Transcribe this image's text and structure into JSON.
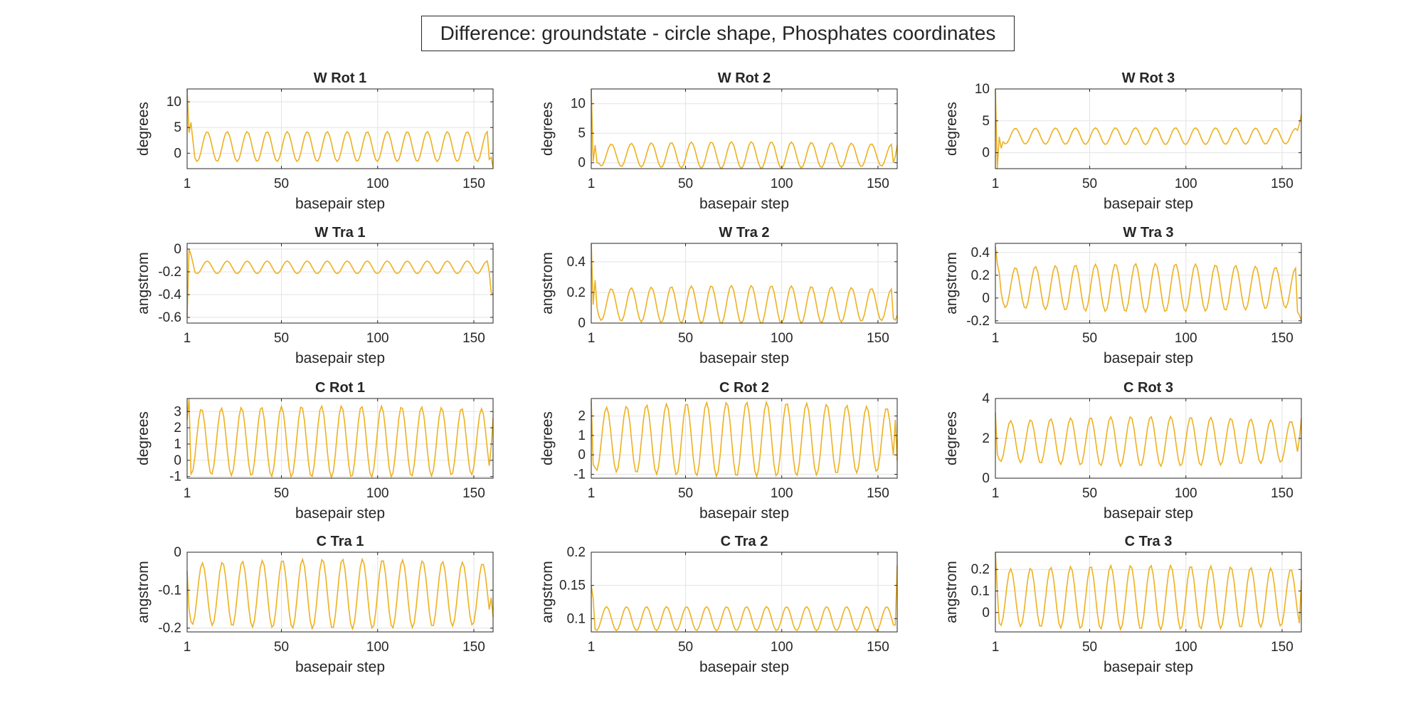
{
  "figure": {
    "suptitle": "Difference: groundstate - circle shape, Phosphates coordinates",
    "line_color": "#EDB120"
  },
  "chart_data": [
    {
      "type": "line",
      "title": "W Rot 1",
      "xlabel": "basepair step",
      "ylabel": "degrees",
      "xlim": [
        1,
        160
      ],
      "ylim": [
        -3,
        12.5
      ],
      "xticks": [
        1,
        50,
        100,
        150
      ],
      "yticks": [
        0,
        5,
        10
      ],
      "grid": true,
      "series": [
        {
          "x_start": 1,
          "x_end": 160,
          "period": 10.4,
          "mean": 1.3,
          "amplitude": 2.9,
          "amp_growth": 0,
          "phase": 0,
          "start": [
            12.5,
            4,
            6,
            2.5
          ],
          "end": [
            -1.2,
            -0.8,
            -2.8
          ]
        }
      ]
    },
    {
      "type": "line",
      "title": "W Rot 2",
      "xlabel": "basepair step",
      "ylabel": "degrees",
      "xlim": [
        1,
        160
      ],
      "ylim": [
        -1,
        12.5
      ],
      "xticks": [
        1,
        50,
        100,
        150
      ],
      "yticks": [
        0,
        5,
        10
      ],
      "grid": true,
      "series": [
        {
          "x_start": 1,
          "x_end": 160,
          "period": 10.4,
          "mean": 1.3,
          "amplitude": 1.8,
          "amp_growth": 0.25,
          "phase": 0,
          "start": [
            12.5,
            0.2,
            3,
            0
          ],
          "end": [
            0,
            1,
            3
          ]
        }
      ]
    },
    {
      "type": "line",
      "title": "W Rot 3",
      "xlabel": "basepair step",
      "ylabel": "degrees",
      "xlim": [
        1,
        160
      ],
      "ylim": [
        -2.5,
        10
      ],
      "xticks": [
        1,
        50,
        100,
        150
      ],
      "yticks": [
        0,
        5,
        10
      ],
      "grid": true,
      "series": [
        {
          "x_start": 1,
          "x_end": 160,
          "period": 10.4,
          "mean": 2.6,
          "amplitude": 1.2,
          "amp_growth": 0.1,
          "phase": 0,
          "start": [
            10,
            -2.5,
            2.5,
            0.7
          ],
          "end": [
            3.5,
            4.5,
            6
          ]
        }
      ]
    },
    {
      "type": "line",
      "title": "W Tra 1",
      "xlabel": "basepair step",
      "ylabel": "angstrom",
      "xlim": [
        1,
        160
      ],
      "ylim": [
        -0.65,
        0.05
      ],
      "xticks": [
        1,
        50,
        100,
        150
      ],
      "yticks": [
        -0.6,
        -0.4,
        -0.2,
        0
      ],
      "grid": true,
      "series": [
        {
          "x_start": 1,
          "x_end": 160,
          "period": 10.4,
          "mean": -0.16,
          "amplitude": 0.055,
          "amp_growth": 0,
          "phase": 0,
          "start": [
            -0.6,
            0,
            -0.05,
            -0.12
          ],
          "end": [
            -0.2,
            -0.38,
            -0.4
          ]
        }
      ]
    },
    {
      "type": "line",
      "title": "W Tra 2",
      "xlabel": "basepair step",
      "ylabel": "angstrom",
      "xlim": [
        1,
        160
      ],
      "ylim": [
        0,
        0.52
      ],
      "xticks": [
        1,
        50,
        100,
        150
      ],
      "yticks": [
        0,
        0.2,
        0.4
      ],
      "grid": true,
      "series": [
        {
          "x_start": 1,
          "x_end": 160,
          "period": 10.4,
          "mean": 0.12,
          "amplitude": 0.1,
          "amp_growth": 0.25,
          "phase": 0,
          "start": [
            0.52,
            0.12,
            0.28,
            0.1
          ],
          "end": [
            0.03,
            0.02,
            0.05
          ]
        }
      ]
    },
    {
      "type": "line",
      "title": "W Tra 3",
      "xlabel": "basepair step",
      "ylabel": "angstrom",
      "xlim": [
        1,
        160
      ],
      "ylim": [
        -0.22,
        0.48
      ],
      "xticks": [
        1,
        50,
        100,
        150
      ],
      "yticks": [
        -0.2,
        0,
        0.2,
        0.4
      ],
      "grid": true,
      "series": [
        {
          "x_start": 1,
          "x_end": 160,
          "period": 10.4,
          "mean": 0.09,
          "amplitude": 0.17,
          "amp_growth": 0.25,
          "phase": 0,
          "start": [
            0.45,
            0.3,
            0.22,
            0.05
          ],
          "end": [
            -0.12,
            -0.15,
            -0.2
          ]
        }
      ]
    },
    {
      "type": "line",
      "title": "C Rot 1",
      "xlabel": "basepair step",
      "ylabel": "degrees",
      "xlim": [
        1,
        160
      ],
      "ylim": [
        -1.1,
        3.8
      ],
      "xticks": [
        1,
        50,
        100,
        150
      ],
      "yticks": [
        -1,
        0,
        1,
        2,
        3
      ],
      "grid": true,
      "series": [
        {
          "x_start": 1,
          "x_end": 160,
          "period": 10.4,
          "mean": 1.15,
          "amplitude": 2.0,
          "amp_growth": 0.1,
          "phase": 1.8,
          "start": [
            2.5,
            3.8
          ],
          "end": [
            0.8,
            2.6
          ]
        }
      ]
    },
    {
      "type": "line",
      "title": "C Rot 2",
      "xlabel": "basepair step",
      "ylabel": "degrees",
      "xlim": [
        1,
        160
      ],
      "ylim": [
        -1.2,
        2.9
      ],
      "xticks": [
        1,
        50,
        100,
        150
      ],
      "yticks": [
        -1,
        0,
        1,
        2
      ],
      "grid": true,
      "series": [
        {
          "x_start": 1,
          "x_end": 160,
          "period": 10.4,
          "mean": 0.8,
          "amplitude": 1.6,
          "amp_growth": 0.2,
          "phase": 1.5,
          "start": [
            2.8,
            -0.5
          ],
          "end": [
            1.8,
            -0.3
          ]
        }
      ]
    },
    {
      "type": "line",
      "title": "C Rot 3",
      "xlabel": "basepair step",
      "ylabel": "degrees",
      "xlim": [
        1,
        160
      ],
      "ylim": [
        0,
        4
      ],
      "xticks": [
        1,
        50,
        100,
        150
      ],
      "yticks": [
        0,
        2,
        4
      ],
      "grid": true,
      "series": [
        {
          "x_start": 1,
          "x_end": 160,
          "period": 10.4,
          "mean": 1.85,
          "amplitude": 1.0,
          "amp_growth": 0.25,
          "phase": 1.5,
          "start": [
            3.3,
            1.2
          ],
          "end": [
            2.0,
            3.0
          ]
        }
      ]
    },
    {
      "type": "line",
      "title": "C Tra 1",
      "xlabel": "basepair step",
      "ylabel": "angstrom",
      "xlim": [
        1,
        160
      ],
      "ylim": [
        -0.21,
        0
      ],
      "xticks": [
        1,
        50,
        100,
        150
      ],
      "yticks": [
        -0.2,
        -0.1,
        0
      ],
      "grid": true,
      "series": [
        {
          "x_start": 1,
          "x_end": 160,
          "period": 10.4,
          "mean": -0.11,
          "amplitude": 0.08,
          "amp_growth": 0.15,
          "phase": 1.5,
          "start": [
            -0.05,
            -0.15
          ],
          "end": [
            -0.12,
            -0.17
          ]
        }
      ]
    },
    {
      "type": "line",
      "title": "C Tra 2",
      "xlabel": "basepair step",
      "ylabel": "angstrom",
      "xlim": [
        1,
        160
      ],
      "ylim": [
        0.08,
        0.2
      ],
      "xticks": [
        1,
        50,
        100,
        150
      ],
      "yticks": [
        0.1,
        0.15,
        0.2
      ],
      "grid": true,
      "series": [
        {
          "x_start": 1,
          "x_end": 160,
          "period": 10.4,
          "mean": 0.1,
          "amplitude": 0.018,
          "amp_growth": 0,
          "phase": 1.5,
          "start": [
            0.15,
            0.13
          ],
          "end": [
            0.09,
            0.18
          ]
        }
      ]
    },
    {
      "type": "line",
      "title": "C Tra 3",
      "xlabel": "basepair step",
      "ylabel": "angstrom",
      "xlim": [
        1,
        160
      ],
      "ylim": [
        -0.09,
        0.28
      ],
      "xticks": [
        1,
        50,
        100,
        150
      ],
      "yticks": [
        0,
        0.1,
        0.2
      ],
      "grid": true,
      "series": [
        {
          "x_start": 1,
          "x_end": 160,
          "period": 10.4,
          "mean": 0.07,
          "amplitude": 0.13,
          "amp_growth": 0.15,
          "phase": 1.5,
          "start": [
            0.28,
            0.1
          ],
          "end": [
            -0.05,
            0.15
          ]
        }
      ]
    }
  ]
}
